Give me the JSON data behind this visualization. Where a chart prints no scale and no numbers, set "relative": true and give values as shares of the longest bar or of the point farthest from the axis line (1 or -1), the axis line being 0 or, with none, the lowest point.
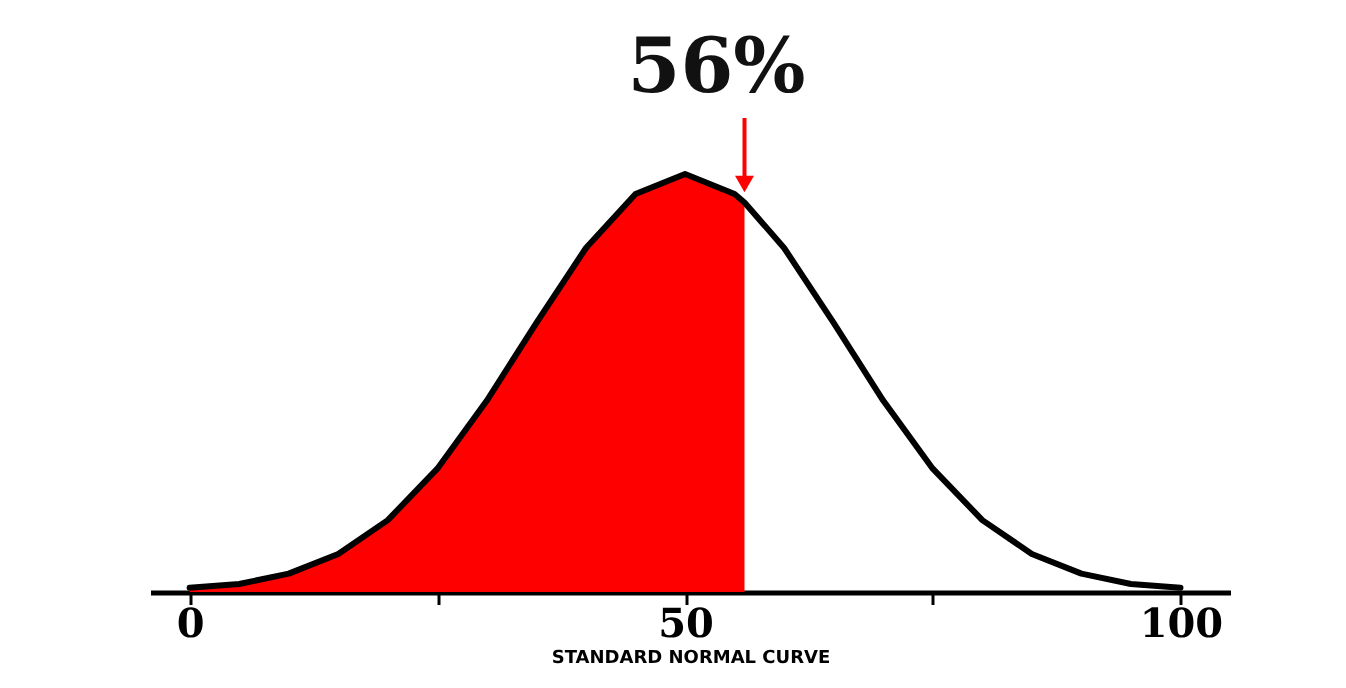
{
  "chart_data": {
    "type": "line",
    "relative": true,
    "xlabel": "STANDARD NORMAL CURVE",
    "xlim": [
      -4,
      105
    ],
    "xticks": [
      0,
      {
        "value": 25,
        "label": null
      },
      50,
      {
        "value": 75,
        "label": null
      },
      100
    ],
    "grid": false,
    "marker": "none",
    "line_style": "solid",
    "annotations": [
      {
        "text": "56%",
        "x": 56,
        "y": 0.932
      }
    ],
    "series": [
      {
        "type": "area",
        "color": "#ff0000",
        "x": [
          0,
          5,
          10,
          15,
          20,
          25,
          30,
          35,
          40,
          45,
          50,
          55,
          56
        ],
        "values": [
          0.01,
          0.019,
          0.044,
          0.091,
          0.172,
          0.295,
          0.458,
          0.644,
          0.823,
          0.952,
          1,
          0.952,
          0.932
        ]
      },
      {
        "type": "line",
        "color": "#000000",
        "x": [
          0,
          5,
          10,
          15,
          20,
          25,
          30,
          35,
          40,
          45,
          50,
          55,
          56,
          60,
          65,
          70,
          75,
          80,
          85,
          90,
          95,
          100
        ],
        "values": [
          0.01,
          0.019,
          0.044,
          0.091,
          0.172,
          0.295,
          0.458,
          0.644,
          0.823,
          0.952,
          1,
          0.952,
          0.932,
          0.823,
          0.644,
          0.458,
          0.295,
          0.172,
          0.091,
          0.044,
          0.019,
          0.01
        ]
      }
    ]
  }
}
